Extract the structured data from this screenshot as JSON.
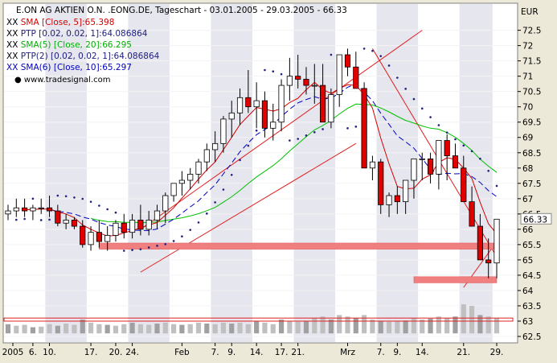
{
  "chart_data": {
    "type": "candlestick",
    "header": "E.ON AG AKTIEN O.N. .EONG.DE, Tageschart - 03.01.2005 - 29.03.2005 - 66.33",
    "legend": [
      {
        "prefix": "XX",
        "text": "SMA [Close, 5]:65.398",
        "color": "#d40000"
      },
      {
        "prefix": "XX",
        "text": "PTP [0.02, 0.02, 1]:64.086864",
        "color": "#202080"
      },
      {
        "prefix": "XX",
        "text": "SMA(5) [Close, 20]:66.295",
        "color": "#00b000"
      },
      {
        "prefix": "XX",
        "text": "PTP(2) [0.02, 0.02, 1]:64.086864",
        "color": "#202080"
      },
      {
        "prefix": "XX",
        "text": "SMA(6) [Close, 10]:65.297",
        "color": "#0000c0"
      }
    ],
    "source": "www.tradesignal.com",
    "currency": "EUR",
    "last_price": "66.33",
    "ylim": [
      62.5,
      72.7
    ],
    "y_ticks": [
      "72.5",
      "72",
      "71.5",
      "71",
      "70.5",
      "70",
      "69.5",
      "69",
      "68.5",
      "68",
      "67.5",
      "67",
      "66.5",
      "66",
      "65.5",
      "65",
      "64.5",
      "64",
      "63.5",
      "63",
      "62.5"
    ],
    "x_ticks": [
      "2005",
      "6.",
      "10.",
      "17.",
      "20.",
      "24.",
      "Feb",
      "7.",
      "9.",
      "14.",
      "17.",
      "21.",
      "Mrz",
      "7.",
      "9.",
      "14.",
      "21.",
      "29."
    ],
    "dates": [
      "2005-01-03",
      "2005-01-04",
      "2005-01-05",
      "2005-01-06",
      "2005-01-07",
      "2005-01-10",
      "2005-01-11",
      "2005-01-12",
      "2005-01-13",
      "2005-01-14",
      "2005-01-17",
      "2005-01-18",
      "2005-01-19",
      "2005-01-20",
      "2005-01-21",
      "2005-01-24",
      "2005-01-25",
      "2005-01-26",
      "2005-01-27",
      "2005-01-28",
      "2005-01-31",
      "2005-02-01",
      "2005-02-02",
      "2005-02-03",
      "2005-02-04",
      "2005-02-07",
      "2005-02-08",
      "2005-02-09",
      "2005-02-10",
      "2005-02-11",
      "2005-02-14",
      "2005-02-15",
      "2005-02-16",
      "2005-02-17",
      "2005-02-18",
      "2005-02-21",
      "2005-02-22",
      "2005-02-23",
      "2005-02-24",
      "2005-02-25",
      "2005-02-28",
      "2005-03-01",
      "2005-03-02",
      "2005-03-03",
      "2005-03-04",
      "2005-03-07",
      "2005-03-08",
      "2005-03-09",
      "2005-03-10",
      "2005-03-11",
      "2005-03-14",
      "2005-03-15",
      "2005-03-16",
      "2005-03-17",
      "2005-03-18",
      "2005-03-21",
      "2005-03-22",
      "2005-03-23",
      "2005-03-24",
      "2005-03-29"
    ],
    "series": [
      {
        "name": "open",
        "values": [
          66.5,
          66.6,
          66.7,
          66.6,
          66.7,
          66.7,
          66.6,
          66.2,
          66.3,
          66.1,
          65.5,
          65.9,
          65.6,
          65.8,
          66.2,
          65.9,
          66.3,
          66.0,
          66.3,
          66.6,
          67.1,
          67.5,
          67.6,
          67.8,
          68.2,
          68.6,
          68.8,
          69.6,
          69.8,
          70.3,
          70.0,
          70.2,
          69.3,
          69.5,
          70.7,
          71.0,
          70.9,
          70.7,
          70.7,
          69.5,
          70.4,
          71.7,
          71.3,
          70.6,
          68.0,
          68.2,
          66.8,
          67.1,
          66.9,
          67.6,
          68.3,
          68.3,
          67.8,
          68.9,
          68.4,
          68.0,
          66.9,
          66.1,
          65.0,
          64.9
        ]
      },
      {
        "name": "high",
        "values": [
          66.8,
          67.0,
          67.0,
          66.8,
          67.0,
          67.1,
          66.8,
          66.5,
          66.4,
          66.3,
          66.1,
          66.3,
          66.1,
          66.3,
          66.5,
          66.5,
          66.8,
          66.6,
          66.8,
          67.2,
          67.5,
          67.9,
          68.0,
          68.3,
          68.8,
          69.2,
          69.7,
          70.2,
          70.6,
          71.2,
          70.8,
          70.5,
          70.1,
          70.9,
          71.6,
          71.7,
          71.3,
          71.4,
          71.4,
          70.6,
          71.6,
          71.9,
          71.8,
          70.8,
          68.4,
          68.3,
          67.2,
          67.4,
          67.4,
          68.0,
          68.5,
          68.5,
          68.4,
          69.1,
          68.8,
          68.4,
          67.4,
          66.5,
          65.7,
          65.5
        ]
      },
      {
        "name": "low",
        "values": [
          66.3,
          66.4,
          66.4,
          66.3,
          66.5,
          66.4,
          66.1,
          66.0,
          66.0,
          65.4,
          65.3,
          65.4,
          65.3,
          65.6,
          65.7,
          65.7,
          65.8,
          65.8,
          66.0,
          66.2,
          66.9,
          67.1,
          67.3,
          67.5,
          67.9,
          68.2,
          68.5,
          69.0,
          69.4,
          69.8,
          69.3,
          69.0,
          68.9,
          69.2,
          70.2,
          70.6,
          70.4,
          70.1,
          69.7,
          69.3,
          70.0,
          71.0,
          70.6,
          68.2,
          67.6,
          66.5,
          66.4,
          66.5,
          66.5,
          67.0,
          67.6,
          67.5,
          67.3,
          67.6,
          68.0,
          67.0,
          66.1,
          65.0,
          64.4,
          64.4
        ]
      },
      {
        "name": "close",
        "values": [
          66.6,
          66.7,
          66.6,
          66.7,
          66.7,
          66.6,
          66.2,
          66.3,
          66.1,
          65.5,
          65.9,
          65.6,
          65.8,
          66.2,
          65.9,
          66.3,
          66.0,
          66.3,
          66.6,
          67.1,
          67.5,
          67.6,
          67.8,
          68.2,
          68.6,
          68.8,
          69.6,
          69.8,
          70.3,
          70.0,
          70.2,
          69.3,
          69.5,
          70.7,
          71.0,
          70.9,
          70.7,
          70.7,
          69.5,
          70.4,
          71.7,
          71.3,
          70.6,
          68.0,
          68.2,
          66.8,
          67.1,
          66.9,
          67.6,
          68.3,
          68.3,
          67.8,
          68.9,
          68.4,
          68.0,
          66.9,
          66.1,
          65.0,
          64.9,
          66.33
        ]
      },
      {
        "name": "volume",
        "values": [
          0.3,
          0.25,
          0.28,
          0.2,
          0.22,
          0.3,
          0.25,
          0.32,
          0.28,
          0.45,
          0.35,
          0.3,
          0.28,
          0.25,
          0.3,
          0.35,
          0.3,
          0.28,
          0.32,
          0.35,
          0.3,
          0.28,
          0.3,
          0.35,
          0.32,
          0.3,
          0.35,
          0.32,
          0.35,
          0.3,
          0.4,
          0.35,
          0.3,
          0.45,
          0.4,
          0.38,
          0.4,
          0.5,
          0.55,
          0.45,
          0.6,
          0.55,
          0.5,
          0.6,
          0.45,
          0.4,
          0.38,
          0.4,
          0.42,
          0.5,
          0.45,
          0.48,
          0.55,
          0.5,
          0.55,
          0.95,
          0.9,
          0.6,
          0.55,
          0.5
        ]
      }
    ]
  }
}
